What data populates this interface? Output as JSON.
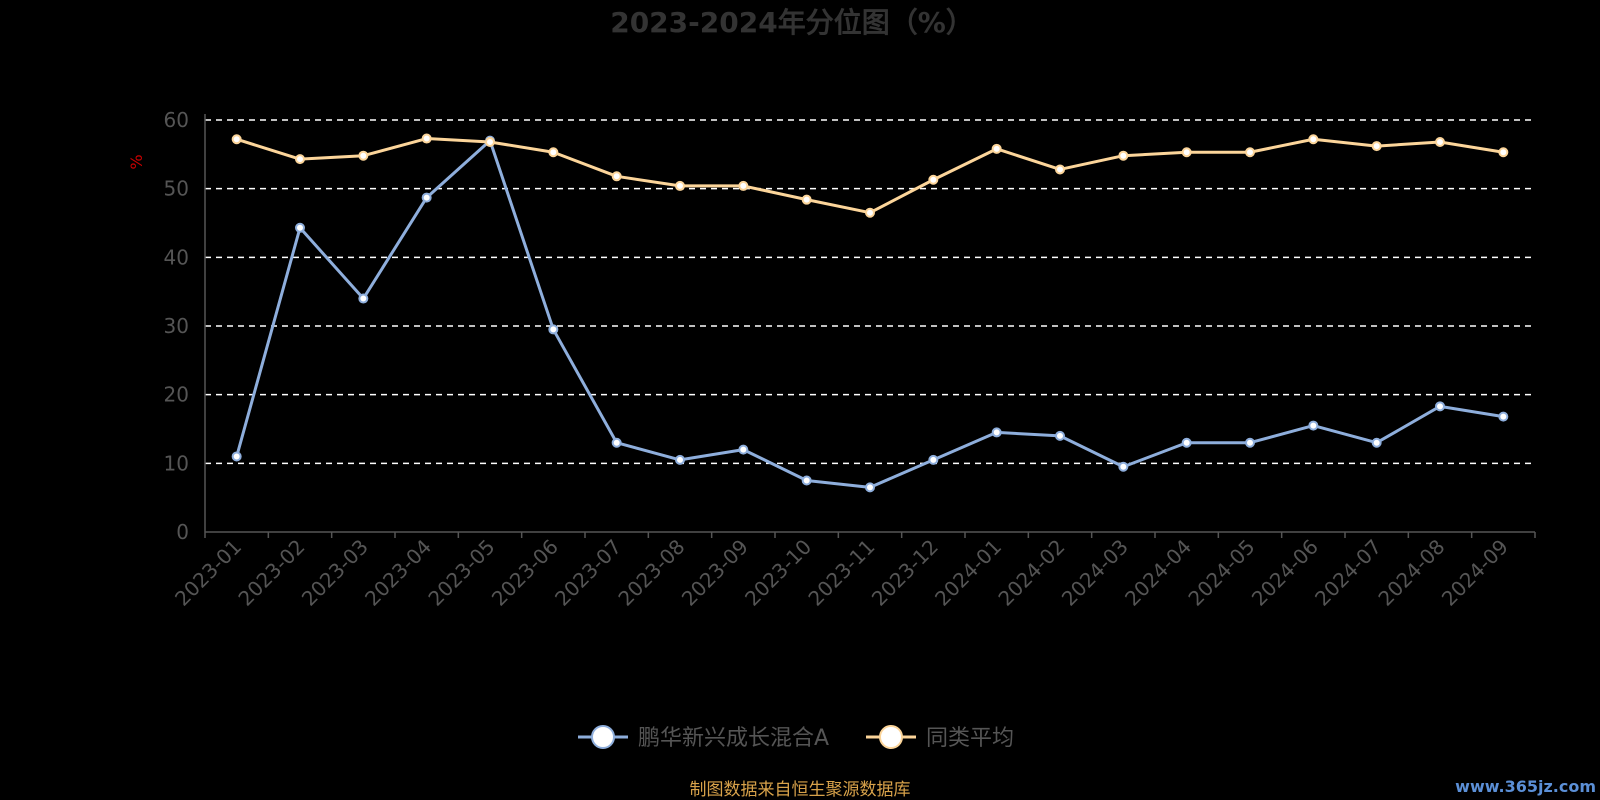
{
  "chart_data": {
    "type": "line",
    "title": "2023-2024年分位图（%）",
    "ylabel": "%",
    "xlabel": "",
    "ylim": [
      0,
      60
    ],
    "y_ticks": [
      0,
      10,
      20,
      30,
      40,
      50,
      60
    ],
    "grid": true,
    "legend_position": "bottom",
    "categories": [
      "2023-01",
      "2023-02",
      "2023-03",
      "2023-04",
      "2023-05",
      "2023-06",
      "2023-07",
      "2023-08",
      "2023-09",
      "2023-10",
      "2023-11",
      "2023-12",
      "2024-01",
      "2024-02",
      "2024-03",
      "2024-04",
      "2024-05",
      "2024-06",
      "2024-07",
      "2024-08",
      "2024-09"
    ],
    "series": [
      {
        "name": "鹏华新兴成长混合A",
        "color": "#8eaedc",
        "values": [
          11,
          44.3,
          34,
          48.7,
          57,
          29.5,
          13,
          10.5,
          12,
          7.5,
          6.5,
          10.5,
          14.5,
          14,
          9.5,
          13,
          13,
          15.5,
          13,
          18.3,
          16.8
        ]
      },
      {
        "name": "同类平均",
        "color": "#fcd59a",
        "values": [
          57.2,
          54.3,
          54.8,
          57.3,
          56.8,
          55.3,
          51.8,
          50.4,
          50.4,
          48.4,
          46.5,
          51.3,
          55.8,
          52.8,
          54.8,
          55.3,
          55.3,
          57.2,
          56.2,
          56.8,
          55.3
        ]
      }
    ]
  },
  "footer": {
    "source": "制图数据来自恒生聚源数据库",
    "watermark": "www.365jz.com"
  }
}
